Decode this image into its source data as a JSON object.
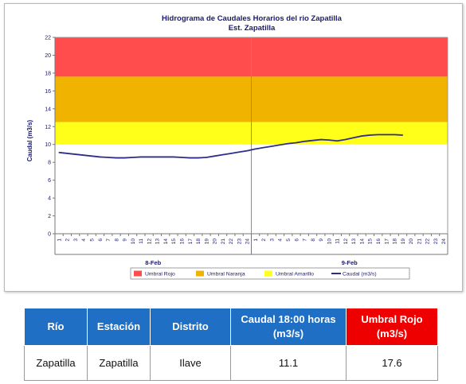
{
  "chart_data": {
    "type": "line",
    "title": "Hidrograma de Caudales Horarios del rio Zapatilla",
    "subtitle": "Est. Zapatilla",
    "ylabel": "Caudal (m3/s)",
    "xlabel": "",
    "ylim": [
      0,
      22
    ],
    "yticks": [
      "0",
      "2",
      "4",
      "6",
      "8",
      "10",
      "12",
      "14",
      "16",
      "18",
      "20",
      "22"
    ],
    "xtick_labels": [
      "1",
      "2",
      "3",
      "4",
      "5",
      "6",
      "7",
      "8",
      "9",
      "10",
      "11",
      "12",
      "13",
      "14",
      "15",
      "16",
      "17",
      "18",
      "19",
      "20",
      "21",
      "22",
      "23",
      "24",
      "1",
      "2",
      "3",
      "4",
      "5",
      "6",
      "7",
      "8",
      "9",
      "10",
      "11",
      "12",
      "13",
      "14",
      "15",
      "16",
      "17",
      "18",
      "19",
      "20",
      "21",
      "22",
      "23",
      "24"
    ],
    "day_labels": [
      "8-Feb",
      "9-Feb"
    ],
    "bands": [
      {
        "name": "Umbral Rojo",
        "from": 17.6,
        "to": 22,
        "color": "#ff4d4d"
      },
      {
        "name": "Umbral Naranja",
        "from": 12.5,
        "to": 17.6,
        "color": "#f0b400"
      },
      {
        "name": "Umbral Amarillo",
        "from": 10,
        "to": 12.5,
        "color": "#ffff1a"
      }
    ],
    "series": [
      {
        "name": "Caudal (m3/s)",
        "color": "#2e2e8a",
        "values": [
          9.1,
          9.0,
          8.9,
          8.8,
          8.7,
          8.6,
          8.55,
          8.5,
          8.5,
          8.55,
          8.6,
          8.6,
          8.6,
          8.6,
          8.6,
          8.55,
          8.5,
          8.5,
          8.55,
          8.7,
          8.85,
          9.0,
          9.15,
          9.3,
          9.5,
          9.65,
          9.8,
          9.95,
          10.1,
          10.2,
          10.35,
          10.45,
          10.55,
          10.5,
          10.4,
          10.55,
          10.75,
          10.95,
          11.05,
          11.1,
          11.1,
          11.1,
          11.05
        ]
      }
    ],
    "legend_position": "bottom"
  },
  "table": {
    "headers": [
      "Río",
      "Estación",
      "Distrito",
      "Caudal 18:00 horas (m3/s)",
      "Umbral Rojo (m3/s)"
    ],
    "row": [
      "Zapatilla",
      "Zapatilla",
      "Ilave",
      "11.1",
      "17.6"
    ],
    "header_color": "#1f6fc5",
    "alert_header_color": "#ee0000"
  }
}
